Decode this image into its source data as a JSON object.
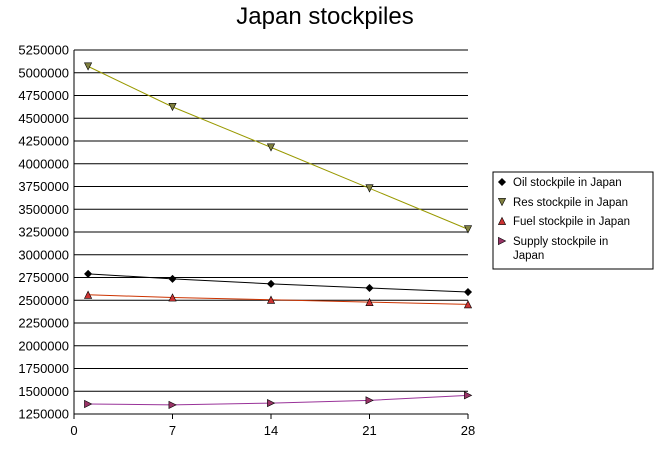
{
  "chart_data": {
    "type": "line",
    "title": "Japan stockpiles",
    "xlabel": "",
    "ylabel": "",
    "x": [
      1,
      7,
      14,
      21,
      28
    ],
    "xlim": [
      0,
      28
    ],
    "xticks": [
      0,
      7,
      14,
      21,
      28
    ],
    "ylim": [
      1250000,
      5250000
    ],
    "yticks": [
      1250000,
      1500000,
      1750000,
      2000000,
      2250000,
      2500000,
      2750000,
      3000000,
      3250000,
      3500000,
      3750000,
      4000000,
      4250000,
      4500000,
      4750000,
      5000000,
      5250000
    ],
    "grid": "horizontal",
    "legend_position": "right",
    "series": [
      {
        "name": "Oil stockpile in Japan",
        "marker": "diamond",
        "line_color": "#000000",
        "marker_color": "#000000",
        "values": [
          2790000,
          2735000,
          2680000,
          2635000,
          2590000
        ]
      },
      {
        "name": "Res stockpile in Japan",
        "marker": "triangle-down",
        "line_color": "#999900",
        "marker_color": "#808040",
        "values": [
          5070000,
          4625000,
          4180000,
          3730000,
          3280000
        ]
      },
      {
        "name": "Fuel stockpile in Japan",
        "marker": "triangle-up",
        "line_color": "#cc3300",
        "marker_color": "#cc3333",
        "values": [
          2560000,
          2530000,
          2505000,
          2480000,
          2455000
        ]
      },
      {
        "name": "Supply stockpile in Japan",
        "legend_lines": [
          "Supply stockpile in",
          "Japan"
        ],
        "marker": "triangle-right",
        "line_color": "#993399",
        "marker_color": "#993366",
        "values": [
          1360000,
          1350000,
          1370000,
          1400000,
          1455000
        ]
      }
    ]
  }
}
